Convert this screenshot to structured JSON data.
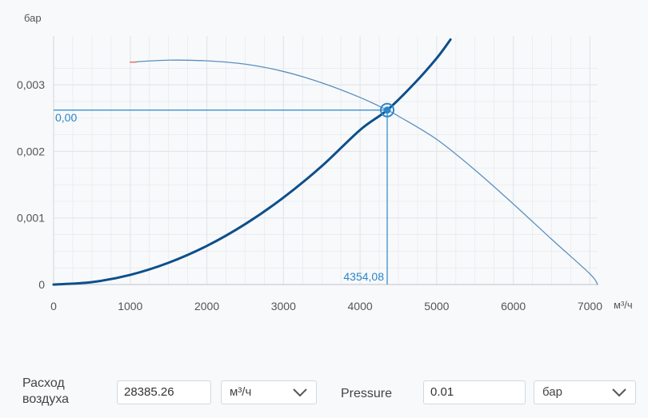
{
  "chart_data": {
    "type": "line",
    "y_unit": "бар",
    "x_unit": "м³/ч",
    "xlim": [
      0,
      7100
    ],
    "ylim": [
      0,
      0.0036
    ],
    "x_ticks": [
      "0",
      "1000",
      "2000",
      "3000",
      "4000",
      "5000",
      "6000",
      "7000"
    ],
    "x_tick_values": [
      0,
      1000,
      2000,
      3000,
      4000,
      5000,
      6000,
      7000
    ],
    "y_ticks": [
      "0",
      "0,001",
      "0,002",
      "0,003"
    ],
    "y_tick_values": [
      0,
      0.001,
      0.002,
      0.003
    ],
    "grid": true,
    "series": [
      {
        "color": "#0d4f8b",
        "x": [
          0,
          500,
          1000,
          1500,
          2000,
          2500,
          3000,
          3500,
          4000,
          4354,
          4700,
          5000,
          5180
        ],
        "y": [
          0,
          3.6e-05,
          0.000145,
          0.000327,
          0.00058,
          0.000907,
          0.001306,
          0.001778,
          0.002322,
          0.00262,
          0.00301,
          0.0034,
          0.00368
        ]
      },
      {
        "color": "#5a8fbf",
        "x": [
          1000,
          1500,
          2000,
          2500,
          3000,
          3500,
          4000,
          4354,
          4500,
          5000,
          5500,
          6000,
          6500,
          7000,
          7100
        ],
        "y": [
          0.00334,
          0.00337,
          0.00336,
          0.00331,
          0.0032,
          0.00303,
          0.00281,
          0.00262,
          0.00253,
          0.00218,
          0.00172,
          0.00121,
          0.00068,
          0.00016,
          0.0
        ]
      },
      {
        "color": "#ff6a4d",
        "x": [
          1000,
          1080
        ],
        "y": [
          0.00334,
          0.00334
        ]
      }
    ],
    "operating_point": {
      "x": 4354.08,
      "y": 0.00262
    },
    "annotations": {
      "x_label": "4354,08",
      "y_label": "0,00"
    },
    "colors": {
      "annotation": "#2a86c9",
      "grid": "#e3e6ea",
      "axis": "#333333"
    }
  },
  "form": {
    "airflow_label": "Расход\nвоздуха",
    "airflow_value": "28385.26",
    "airflow_unit": "м³/ч",
    "pressure_label": "Pressure",
    "pressure_value": "0.01",
    "pressure_unit": "бар"
  }
}
